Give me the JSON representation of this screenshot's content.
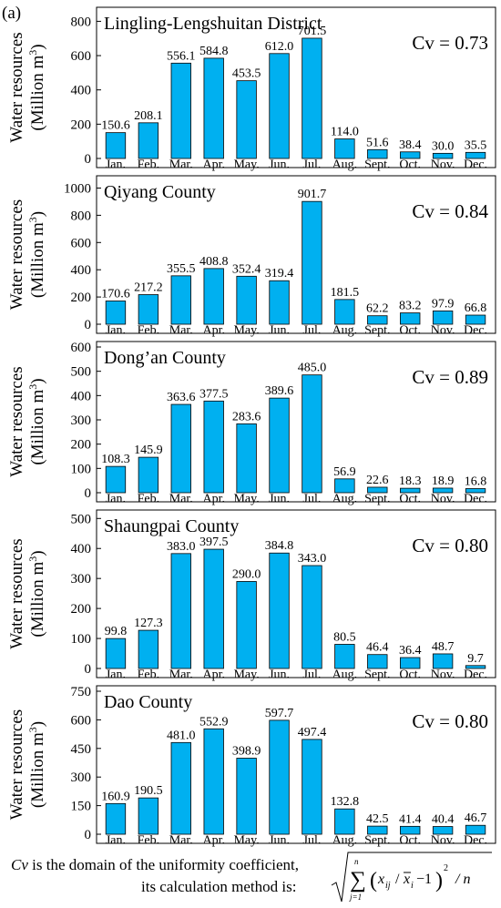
{
  "panel_label": "(a)",
  "ylabel_line1": "Water resources",
  "ylabel_line2": "(Million m",
  "ylabel_sup": "3",
  "ylabel_close": ")",
  "bar_color": "#00b0f0",
  "footnote": {
    "var": "Cv",
    "line1_rest": " is the domain of the uniformity coefficient,",
    "line2": "its calculation method is:",
    "formula": {
      "sum_top": "n",
      "sum_bottom": "j=1",
      "x1": "x",
      "x1_sub": "ij",
      "slash": "/",
      "x2": "x",
      "x2_sub": "i",
      "minus_one": "−1",
      "power": "2",
      "over_n": "/ n"
    }
  },
  "chart_data": [
    {
      "type": "bar",
      "title": "Lingling-Lengshuitan District",
      "cv_label": "Cv = 0.73",
      "categories": [
        "Jan.",
        "Feb.",
        "Mar.",
        "Apr.",
        "May.",
        "Jun.",
        "Jul.",
        "Aug.",
        "Sept.",
        "Oct.",
        "Nov.",
        "Dec."
      ],
      "values": [
        150.6,
        208.1,
        556.1,
        584.8,
        453.5,
        612.0,
        701.5,
        114.0,
        51.6,
        38.4,
        30.0,
        35.5
      ],
      "value_labels": [
        "150.6",
        "208.1",
        "556.1",
        "584.8",
        "453.5",
        "612.0",
        "701.5",
        "114.0",
        "51.6",
        "38.4",
        "30.0",
        "35.5"
      ],
      "ylim": [
        0,
        850
      ],
      "yticks": [
        0,
        200,
        400,
        600,
        800
      ]
    },
    {
      "type": "bar",
      "title": "Qiyang  County",
      "cv_label": "Cv = 0.84",
      "categories": [
        "Jan.",
        "Feb.",
        "Mar.",
        "Apr.",
        "May.",
        "Jun.",
        "Jul.",
        "Aug.",
        "Sept.",
        "Oct.",
        "Nov.",
        "Dec."
      ],
      "values": [
        170.6,
        217.2,
        355.5,
        408.8,
        352.4,
        319.4,
        901.7,
        181.5,
        62.2,
        83.2,
        97.9,
        66.8
      ],
      "value_labels": [
        "170.6",
        "217.2",
        "355.5",
        "408.8",
        "352.4",
        "319.4",
        "901.7",
        "181.5",
        "62.2",
        "83.2",
        "97.9",
        "66.8"
      ],
      "ylim": [
        0,
        1050
      ],
      "yticks": [
        0,
        200,
        400,
        600,
        800,
        1000
      ]
    },
    {
      "type": "bar",
      "title": "Dong’an County",
      "cv_label": "Cv = 0.89",
      "categories": [
        "Jan.",
        "Feb.",
        "Mar.",
        "Apr.",
        "May.",
        "Jun.",
        "Jul.",
        "Aug.",
        "Sept.",
        "Oct.",
        "Nov.",
        "Dec."
      ],
      "values": [
        108.3,
        145.9,
        363.6,
        377.5,
        283.6,
        389.6,
        485.0,
        56.9,
        22.6,
        18.3,
        18.9,
        16.8
      ],
      "value_labels": [
        "108.3",
        "145.9",
        "363.6",
        "377.5",
        "283.6",
        "389.6",
        "485.0",
        "56.9",
        "22.6",
        "18.3",
        "18.9",
        "16.8"
      ],
      "ylim": [
        0,
        600
      ],
      "yticks": [
        0,
        100,
        200,
        300,
        400,
        500,
        600
      ]
    },
    {
      "type": "bar",
      "title": "Shaungpai  County",
      "cv_label": "Cv = 0.80",
      "categories": [
        "Jan.",
        "Feb.",
        "Mar.",
        "Apr.",
        "May.",
        "Jun.",
        "Jul.",
        "Aug.",
        "Sept.",
        "Oct.",
        "Nov.",
        "Dec."
      ],
      "values": [
        99.8,
        127.3,
        383.0,
        397.5,
        290.0,
        384.8,
        343.0,
        80.5,
        46.4,
        36.4,
        48.7,
        9.7
      ],
      "value_labels": [
        "99.8",
        "127.3",
        "383.0",
        "397.5",
        "290.0",
        "384.8",
        "343.0",
        "80.5",
        "46.4",
        "36.4",
        "48.7",
        "9.7"
      ],
      "ylim": [
        0,
        510
      ],
      "yticks": [
        0,
        100,
        200,
        300,
        400,
        500
      ]
    },
    {
      "type": "bar",
      "title": "Dao  County",
      "cv_label": "Cv = 0.80",
      "categories": [
        "Jan.",
        "Feb.",
        "Mar.",
        "Apr.",
        "May.",
        "Jun.",
        "Jul.",
        "Aug.",
        "Sept.",
        "Oct.",
        "Nov.",
        "Dec."
      ],
      "values": [
        160.9,
        190.5,
        481.0,
        552.9,
        398.9,
        597.7,
        497.4,
        132.8,
        42.5,
        41.4,
        40.4,
        46.7
      ],
      "value_labels": [
        "160.9",
        "190.5",
        "481.0",
        "552.9",
        "398.9",
        "597.7",
        "497.4",
        "132.8",
        "42.5",
        "41.4",
        "40.4",
        "46.7"
      ],
      "ylim": [
        0,
        750
      ],
      "yticks": [
        0,
        150,
        300,
        450,
        600,
        750
      ]
    }
  ]
}
